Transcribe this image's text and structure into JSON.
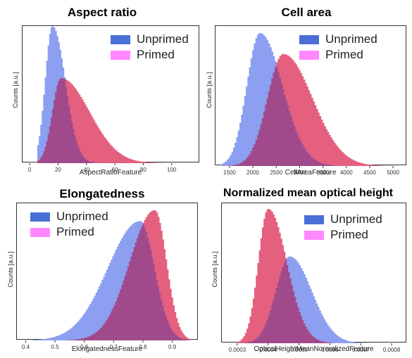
{
  "y_axis_label": "Counts [a.u.]",
  "legend": {
    "unprimed": {
      "label": "Unprimed",
      "color": "#4a6fd6"
    },
    "primed": {
      "label": "Primed",
      "color": "#ff88ff"
    }
  },
  "colors": {
    "unprimed_fill": "#8c9ff0",
    "primed_fill": "#e4607e",
    "overlap_fill": "#a04a8c"
  },
  "chart_data": [
    {
      "type": "histogram",
      "title": "Aspect ratio",
      "xlabel": "AspectRatioFeature",
      "ylabel": "Counts [a.u.]",
      "xlim": [
        -5,
        120
      ],
      "xticks": [
        "0",
        "20",
        "40",
        "60",
        "80",
        "100"
      ],
      "xtick_values": [
        0,
        20,
        40,
        60,
        80,
        100
      ],
      "legend_position": "top-right",
      "series": [
        {
          "name": "Unprimed",
          "shape": "skewed",
          "mode": 16,
          "left_width": 5,
          "right_width": 9,
          "peak": 1.0,
          "range": [
            5,
            80
          ]
        },
        {
          "name": "Primed",
          "shape": "skewed",
          "mode": 22,
          "left_width": 6,
          "right_width": 20,
          "peak": 0.62,
          "range": [
            5,
            110
          ]
        }
      ]
    },
    {
      "type": "histogram",
      "title": "Cell area",
      "xlabel": "CellAreaFeature",
      "ylabel": "Counts [a.u.]",
      "xlim": [
        1200,
        5300
      ],
      "xticks": [
        "1500",
        "2000",
        "2500",
        "3000",
        "3500",
        "4000",
        "4500",
        "5000"
      ],
      "xtick_values": [
        1500,
        2000,
        2500,
        3000,
        3500,
        4000,
        4500,
        5000
      ],
      "legend_position": "top-right",
      "series": [
        {
          "name": "Unprimed",
          "shape": "skewed",
          "mode": 2150,
          "left_width": 280,
          "right_width": 480,
          "peak": 0.95,
          "range": [
            1300,
            4800
          ]
        },
        {
          "name": "Primed",
          "shape": "skewed",
          "mode": 2650,
          "left_width": 340,
          "right_width": 620,
          "peak": 0.8,
          "range": [
            1400,
            5100
          ]
        }
      ]
    },
    {
      "type": "histogram",
      "title": "Elongatedness",
      "xlabel": "ElongatednessFeature",
      "ylabel": "Counts [a.u.]",
      "xlim": [
        0.37,
        0.99
      ],
      "xticks": [
        "0.4",
        "0.5",
        "0.6",
        "0.7",
        "0.8",
        "0.9"
      ],
      "xtick_values": [
        0.4,
        0.5,
        0.6,
        0.7,
        0.8,
        0.9
      ],
      "legend_position": "top-left",
      "series": [
        {
          "name": "Unprimed",
          "shape": "skewed",
          "mode": 0.79,
          "left_width": 0.11,
          "right_width": 0.05,
          "peak": 0.87,
          "range": [
            0.42,
            0.96
          ]
        },
        {
          "name": "Primed",
          "shape": "skewed",
          "mode": 0.84,
          "left_width": 0.085,
          "right_width": 0.04,
          "peak": 0.95,
          "range": [
            0.45,
            0.96
          ]
        }
      ]
    },
    {
      "type": "histogram",
      "title": "Normalized mean optical height",
      "xlabel": "OpticalHeightMeanNormalizedFeature",
      "ylabel": "Counts [a.u.]",
      "xlim": [
        0.00025,
        0.00085
      ],
      "xticks": [
        "0.0003",
        "0.0004",
        "0.0005",
        "0.0006",
        "0.0007",
        "0.0008"
      ],
      "xtick_values": [
        0.0003,
        0.0004,
        0.0005,
        0.0006,
        0.0007,
        0.0008
      ],
      "legend_position": "top-right",
      "series": [
        {
          "name": "Unprimed",
          "shape": "skewed",
          "mode": 0.00047,
          "left_width": 4.5e-05,
          "right_width": 7e-05,
          "peak": 0.62,
          "range": [
            0.0003,
            0.00075
          ]
        },
        {
          "name": "Primed",
          "shape": "skewed",
          "mode": 0.0004,
          "left_width": 3.2e-05,
          "right_width": 6e-05,
          "peak": 0.96,
          "range": [
            0.0003,
            0.0007
          ]
        }
      ]
    }
  ]
}
